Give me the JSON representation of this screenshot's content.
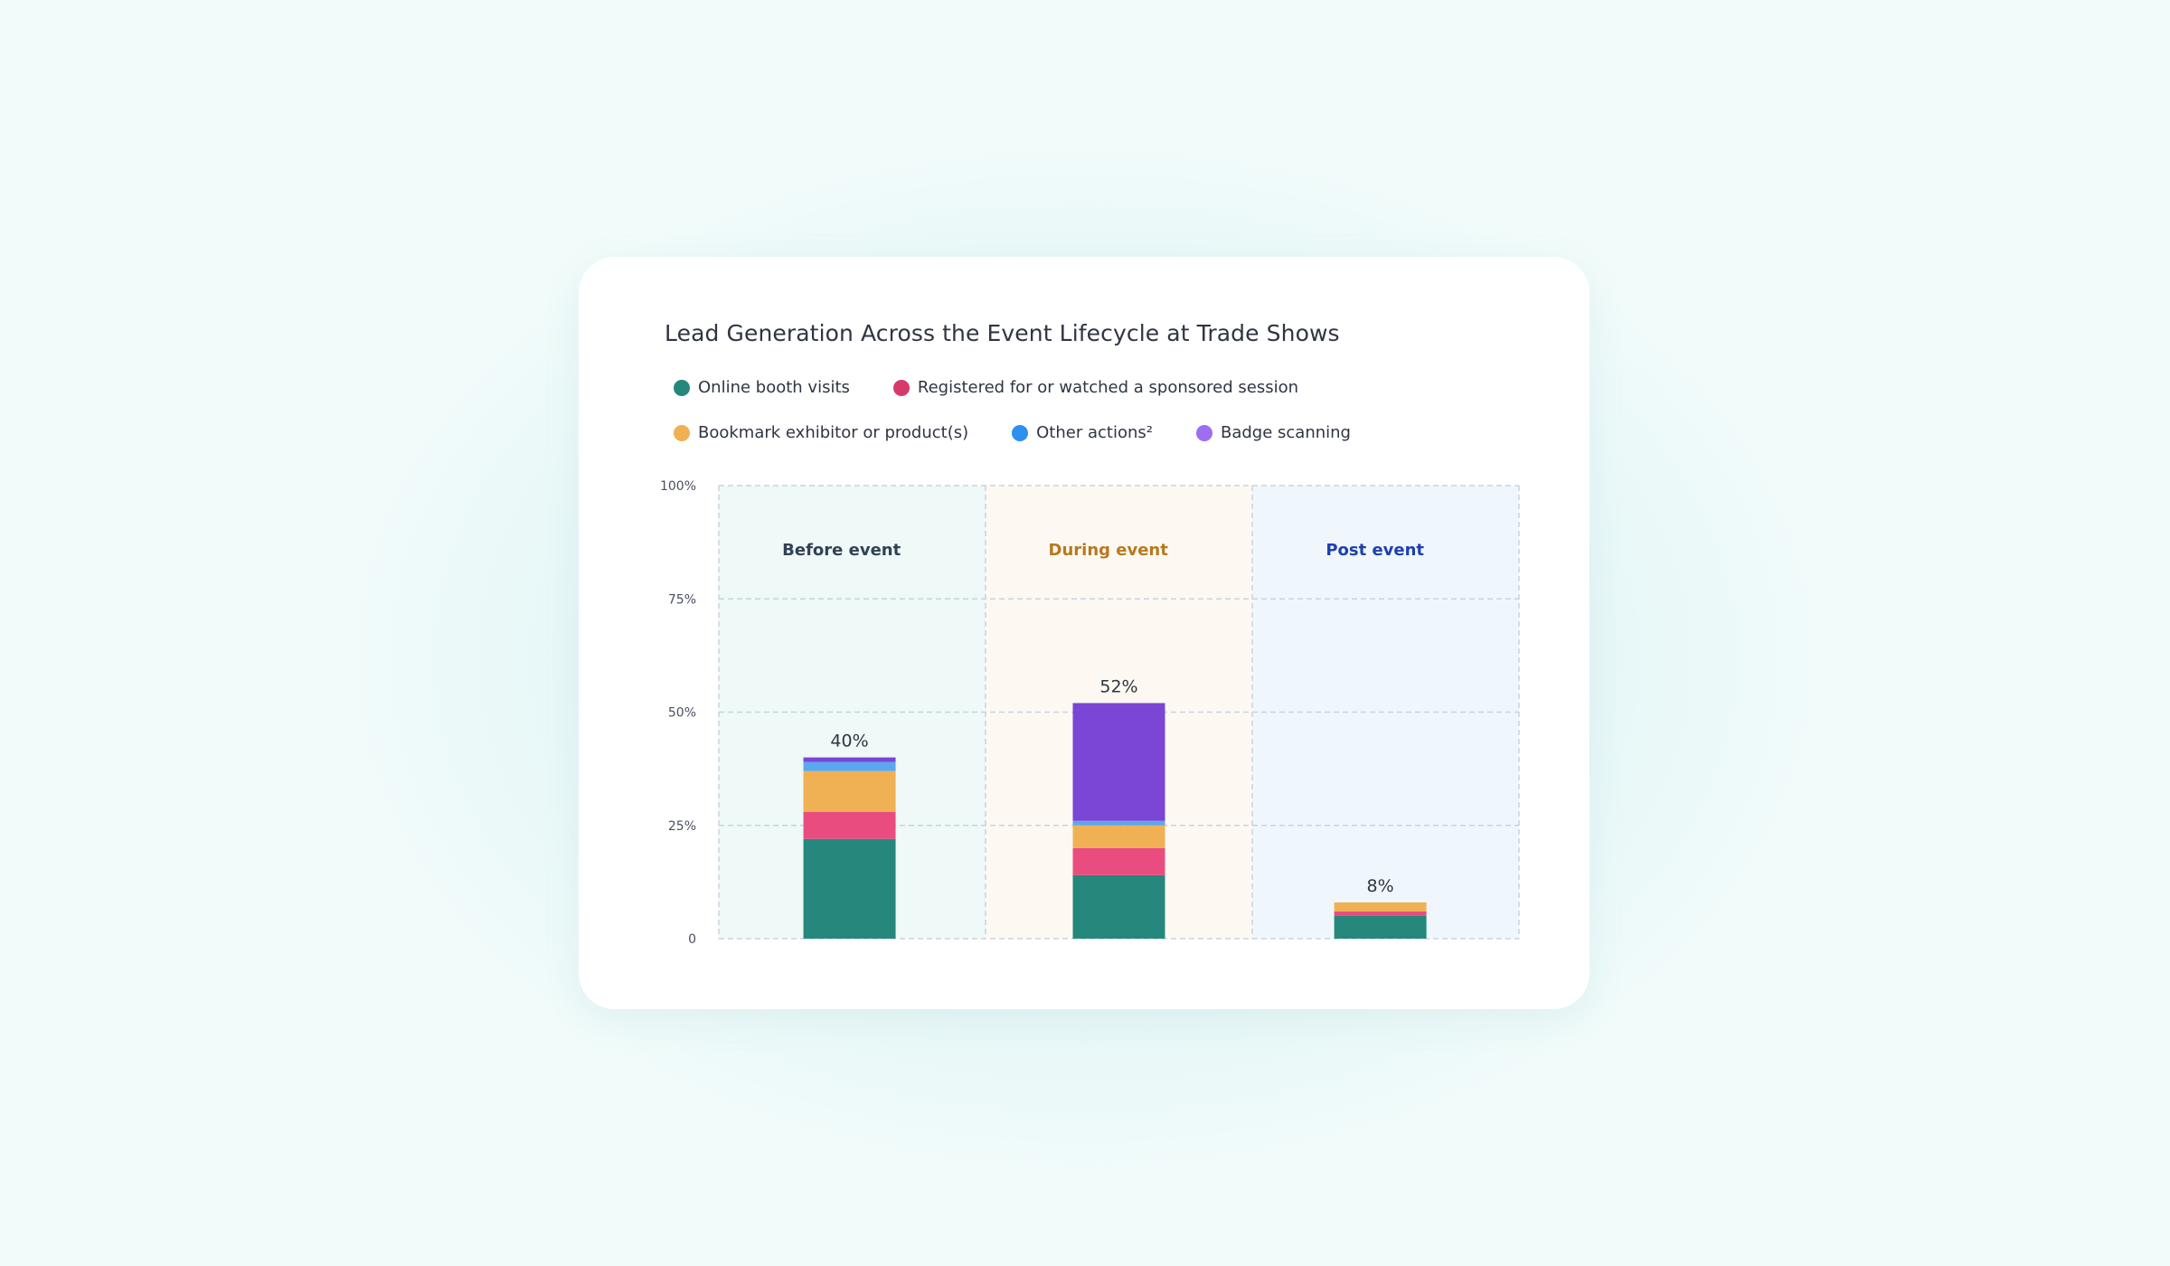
{
  "chart_data": {
    "type": "bar",
    "stacked": true,
    "title": "Lead Generation Across the Event Lifecycle at Trade Shows",
    "categories": [
      "Before event",
      "During event",
      "Post event"
    ],
    "category_colors": [
      "#334155",
      "#b7791f",
      "#1e40af"
    ],
    "category_backgrounds": [
      "#eef9f8",
      "#fdf9f2",
      "#f0f7fc"
    ],
    "series": [
      {
        "name": "Online booth visits",
        "color": "#26877c",
        "values": [
          22,
          14,
          5
        ]
      },
      {
        "name": "Registered for or watched a sponsored session",
        "color": "#e94d80",
        "values": [
          6,
          6,
          1
        ]
      },
      {
        "name": "Bookmark exhibitor or product(s)",
        "color": "#f0b054",
        "values": [
          9,
          5,
          2
        ]
      },
      {
        "name": "Other actions²",
        "color": "#5aa8f0",
        "values": [
          2,
          1,
          0
        ]
      },
      {
        "name": "Badge scanning",
        "color": "#7b45d6",
        "values": [
          1,
          26,
          0
        ]
      }
    ],
    "totals": [
      "40%",
      "52%",
      "8%"
    ],
    "ylim": [
      0,
      100
    ],
    "yticks": [
      {
        "value": 0,
        "label": "0"
      },
      {
        "value": 25,
        "label": "25%"
      },
      {
        "value": 50,
        "label": "50%"
      },
      {
        "value": 75,
        "label": "75%"
      },
      {
        "value": 100,
        "label": "100%"
      }
    ],
    "legend": {
      "rows": [
        [
          0,
          1
        ],
        [
          2,
          3,
          4
        ]
      ],
      "legend_colors": [
        "#26877c",
        "#d63a6a",
        "#f0b054",
        "#2f8ff0",
        "#9b6ff0"
      ]
    },
    "grid": true
  }
}
